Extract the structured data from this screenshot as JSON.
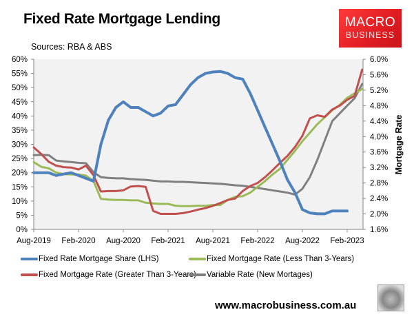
{
  "header": {
    "title": "Fixed Rate Mortgage Lending",
    "sources": "Sources: RBA & ABS",
    "logo_line1": "MACRO",
    "logo_line2": "BUSINESS"
  },
  "footer": {
    "url": "www.macrobusiness.com.au"
  },
  "colors": {
    "blue": "#4f81bd",
    "red": "#c0504d",
    "green": "#9bbb59",
    "grey": "#808080",
    "plot_bg": "#f2f2f2",
    "axis": "#868686",
    "logo_red": "#e31e24"
  },
  "chart_data": {
    "type": "line",
    "title": "Fixed Rate Mortgage Lending",
    "subtitle": "Sources: RBA & ABS",
    "xlabel": "",
    "ylabel_left": "",
    "ylabel_right": "Mortgage Rate",
    "ylim_left": [
      0,
      60
    ],
    "ylim_right": [
      1.6,
      6.0
    ],
    "yticks_left": [
      "0%",
      "5%",
      "10%",
      "15%",
      "20%",
      "25%",
      "30%",
      "35%",
      "40%",
      "45%",
      "50%",
      "55%",
      "60%"
    ],
    "yticks_right": [
      "1.6%",
      "2.0%",
      "2.4%",
      "2.8%",
      "3.2%",
      "3.6%",
      "4.0%",
      "4.4%",
      "4.8%",
      "5.2%",
      "5.6%",
      "6.0%"
    ],
    "xticks": [
      "Aug-2019",
      "Feb-2020",
      "Aug-2020",
      "Feb-2021",
      "Aug-2021",
      "Feb-2022",
      "Aug-2022",
      "Feb-2023"
    ],
    "grid": false,
    "legend_position": "bottom",
    "x": [
      "Aug-2019",
      "Sep-2019",
      "Oct-2019",
      "Nov-2019",
      "Dec-2019",
      "Jan-2020",
      "Feb-2020",
      "Mar-2020",
      "Apr-2020",
      "May-2020",
      "Jun-2020",
      "Jul-2020",
      "Aug-2020",
      "Sep-2020",
      "Oct-2020",
      "Nov-2020",
      "Dec-2020",
      "Jan-2021",
      "Feb-2021",
      "Mar-2021",
      "Apr-2021",
      "May-2021",
      "Jun-2021",
      "Jul-2021",
      "Aug-2021",
      "Sep-2021",
      "Oct-2021",
      "Nov-2021",
      "Dec-2021",
      "Jan-2022",
      "Feb-2022",
      "Mar-2022",
      "Apr-2022",
      "May-2022",
      "Jun-2022",
      "Jul-2022",
      "Aug-2022",
      "Sep-2022",
      "Oct-2022",
      "Nov-2022",
      "Dec-2022",
      "Jan-2023",
      "Feb-2023",
      "Mar-2023",
      "Apr-2023"
    ],
    "series": [
      {
        "name": "Fixed Rate Mortgage Share (LHS)",
        "axis": "left",
        "color": "#4f81bd",
        "values": [
          20.0,
          20.0,
          20.0,
          19.0,
          19.5,
          20.0,
          19.0,
          18.0,
          17.0,
          30.0,
          38.5,
          43.0,
          45.0,
          43.0,
          43.0,
          41.5,
          40.0,
          41.0,
          43.5,
          44.0,
          47.5,
          51.0,
          53.5,
          55.0,
          55.5,
          55.7,
          55.0,
          53.5,
          53.0,
          48.0,
          42.0,
          36.0,
          30.0,
          24.0,
          17.5,
          13.0,
          7.0,
          5.8,
          5.5,
          5.5,
          6.5,
          6.5,
          6.5,
          null,
          null
        ]
      },
      {
        "name": "Fixed Mortgage Rate (Less Than 3-Years)",
        "axis": "right",
        "color": "#9bbb59",
        "values": [
          3.34,
          3.22,
          3.18,
          3.07,
          3.03,
          3.02,
          3.02,
          2.99,
          2.85,
          2.39,
          2.37,
          2.36,
          2.36,
          2.35,
          2.35,
          2.29,
          2.27,
          2.26,
          2.26,
          2.21,
          2.2,
          2.2,
          2.21,
          2.21,
          2.23,
          2.23,
          2.36,
          2.44,
          2.46,
          2.55,
          2.7,
          2.85,
          3.02,
          3.17,
          3.4,
          3.63,
          3.88,
          4.1,
          4.32,
          4.5,
          4.68,
          4.82,
          5.0,
          5.12,
          5.23
        ]
      },
      {
        "name": "Fixed Mortgage Rate (Greater Than 3-Years)",
        "axis": "right",
        "color": "#c0504d",
        "values": [
          3.72,
          3.55,
          3.35,
          3.25,
          3.21,
          3.2,
          3.15,
          3.25,
          3.0,
          2.58,
          2.59,
          2.59,
          2.61,
          2.71,
          2.72,
          2.7,
          2.08,
          2.0,
          2.0,
          2.0,
          2.02,
          2.06,
          2.11,
          2.15,
          2.21,
          2.28,
          2.36,
          2.4,
          2.59,
          2.72,
          2.8,
          2.95,
          3.13,
          3.32,
          3.5,
          3.73,
          4.02,
          4.47,
          4.55,
          4.51,
          4.7,
          4.8,
          4.95,
          5.05,
          5.73
        ]
      },
      {
        "name": "Variable Rate (New Mortages)",
        "axis": "right",
        "color": "#808080",
        "values": [
          3.52,
          3.53,
          3.52,
          3.38,
          3.36,
          3.34,
          3.32,
          3.31,
          3.08,
          2.95,
          2.93,
          2.92,
          2.92,
          2.9,
          2.89,
          2.88,
          2.86,
          2.84,
          2.84,
          2.83,
          2.83,
          2.82,
          2.81,
          2.8,
          2.79,
          2.78,
          2.76,
          2.74,
          2.73,
          2.7,
          2.67,
          2.64,
          2.61,
          2.58,
          2.55,
          2.5,
          2.65,
          2.95,
          3.4,
          3.9,
          4.4,
          4.6,
          4.8,
          4.99,
          5.36
        ]
      }
    ]
  },
  "legend": {
    "items": [
      {
        "label": "Fixed Rate Mortgage Share (LHS)",
        "color": "#4f81bd"
      },
      {
        "label": "Fixed Mortgage Rate (Less Than 3-Years)",
        "color": "#9bbb59"
      },
      {
        "label": "Fixed Mortgage Rate (Greater Than 3-Years)",
        "color": "#c0504d"
      },
      {
        "label": "Variable Rate (New Mortages)",
        "color": "#808080"
      }
    ]
  }
}
